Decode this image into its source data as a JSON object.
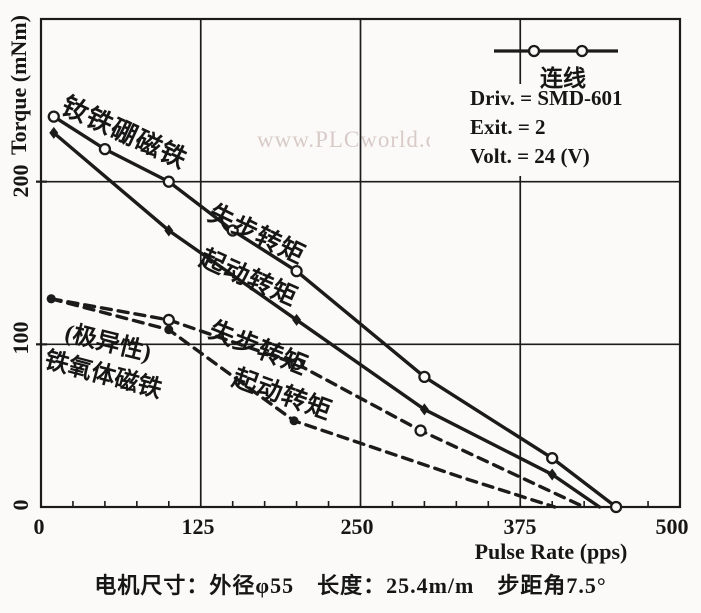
{
  "watermark": "www.PLCworld.cn",
  "caption": "电机尺寸：外径φ55　长度：25.4m/m　步距角7.5°",
  "legend": {
    "line_label": "连线",
    "rows": [
      "Driv. = SMD-601",
      "Exit. = 2",
      "Volt. = 24 (V)"
    ]
  },
  "annotations": {
    "ndfeb_magnet": "钕铁硼磁铁",
    "pullout_solid": "失步转矩",
    "start_solid": "起动转矩",
    "pullout_dashed": "失步转矩",
    "start_dashed": "起动转矩",
    "ferrite_line1": "(极异性)",
    "ferrite_line2": "铁氧体磁铁"
  },
  "chart_data": {
    "type": "line",
    "title": "",
    "xlabel": "Pulse Rate (pps)",
    "ylabel": "Torque (mNm)",
    "xlim": [
      0,
      500
    ],
    "ylim": [
      0,
      300
    ],
    "x_ticks": [
      0,
      125,
      250,
      375,
      500
    ],
    "y_ticks": [
      0,
      100,
      200
    ],
    "x_tick_labels": [
      "0",
      "125",
      "250",
      "375",
      "500"
    ],
    "y_tick_labels": [
      "0",
      "100",
      "200"
    ],
    "grid": true,
    "minor_x_tick_step": 25,
    "legend_position": "top-right",
    "line_color": "#1b1b1b",
    "series": [
      {
        "name": "钕铁硼磁铁 失步转矩 (NdFeB pull-out torque)",
        "style": "solid",
        "points": [
          [
            10,
            240
          ],
          [
            50,
            220
          ],
          [
            100,
            200
          ],
          [
            150,
            170
          ],
          [
            200,
            145
          ],
          [
            300,
            80
          ],
          [
            400,
            30
          ],
          [
            450,
            0
          ]
        ],
        "point_markers": [
          "open",
          "open",
          "open",
          "open",
          "open",
          "open",
          "open",
          "open"
        ]
      },
      {
        "name": "钕铁硼磁铁 起动转矩 (NdFeB starting torque)",
        "style": "solid",
        "points": [
          [
            10,
            230
          ],
          [
            100,
            170
          ],
          [
            200,
            115
          ],
          [
            300,
            60
          ],
          [
            400,
            20
          ],
          [
            437,
            0
          ]
        ],
        "point_markers": [
          "diamond",
          "diamond",
          "diamond",
          "diamond",
          "diamond",
          "none"
        ]
      },
      {
        "name": "铁氧体磁铁 失步转矩 (ferrite pull-out torque)",
        "style": "dashed",
        "points": [
          [
            8,
            128
          ],
          [
            100,
            115
          ],
          [
            200,
            88
          ],
          [
            297,
            47
          ],
          [
            425,
            0
          ]
        ],
        "point_markers": [
          "filled",
          "open",
          "open",
          "open",
          "none"
        ]
      },
      {
        "name": "铁氧体磁铁 起动转矩 (ferrite starting torque)",
        "style": "dashed",
        "points": [
          [
            8,
            128
          ],
          [
            100,
            109
          ],
          [
            198,
            53
          ],
          [
            330,
            18
          ],
          [
            402,
            0
          ]
        ],
        "point_markers": [
          "filled",
          "filled",
          "filled",
          "none",
          "none"
        ]
      }
    ]
  }
}
